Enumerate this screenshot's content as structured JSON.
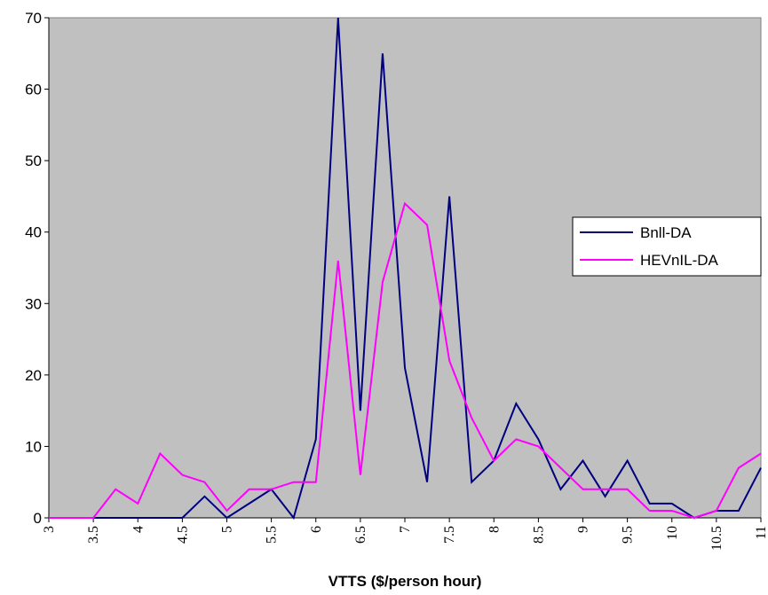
{
  "chart_data": {
    "type": "line",
    "x_label": "VTTS ($/person hour)",
    "x": [
      3,
      3.25,
      3.5,
      3.75,
      4,
      4.25,
      4.5,
      4.75,
      5,
      5.25,
      5.5,
      5.75,
      6,
      6.25,
      6.5,
      6.75,
      7,
      7.25,
      7.5,
      7.75,
      8,
      8.25,
      8.5,
      8.75,
      9,
      9.25,
      9.5,
      9.75,
      10,
      10.25,
      10.5,
      10.75,
      11
    ],
    "series": [
      {
        "name": "Bnll-DA",
        "color": "#000080",
        "values": [
          0,
          0,
          0,
          0,
          0,
          0,
          0,
          3,
          0,
          2,
          4,
          0,
          11,
          70,
          15,
          65,
          21,
          5,
          45,
          5,
          8,
          16,
          11,
          4,
          8,
          3,
          8,
          2,
          2,
          0,
          1,
          1,
          7
        ]
      },
      {
        "name": "HEVnIL-DA",
        "color": "#ff00ff",
        "values": [
          0,
          0,
          0,
          4,
          2,
          9,
          6,
          5,
          1,
          4,
          4,
          5,
          5,
          36,
          6,
          33,
          44,
          41,
          22,
          14,
          8,
          11,
          10,
          7,
          4,
          4,
          4,
          1,
          1,
          0,
          1,
          7,
          9
        ]
      }
    ],
    "xlim": [
      3,
      11
    ],
    "xticks": [
      3,
      3.5,
      4,
      4.5,
      5,
      5.5,
      6,
      6.5,
      7,
      7.5,
      8,
      8.5,
      9,
      9.5,
      10,
      10.5,
      11
    ],
    "ylim": [
      0,
      70
    ],
    "yticks": [
      0,
      10,
      20,
      30,
      40,
      50,
      60,
      70
    ],
    "legend": "right",
    "plot_background": "#c0c0c0"
  }
}
